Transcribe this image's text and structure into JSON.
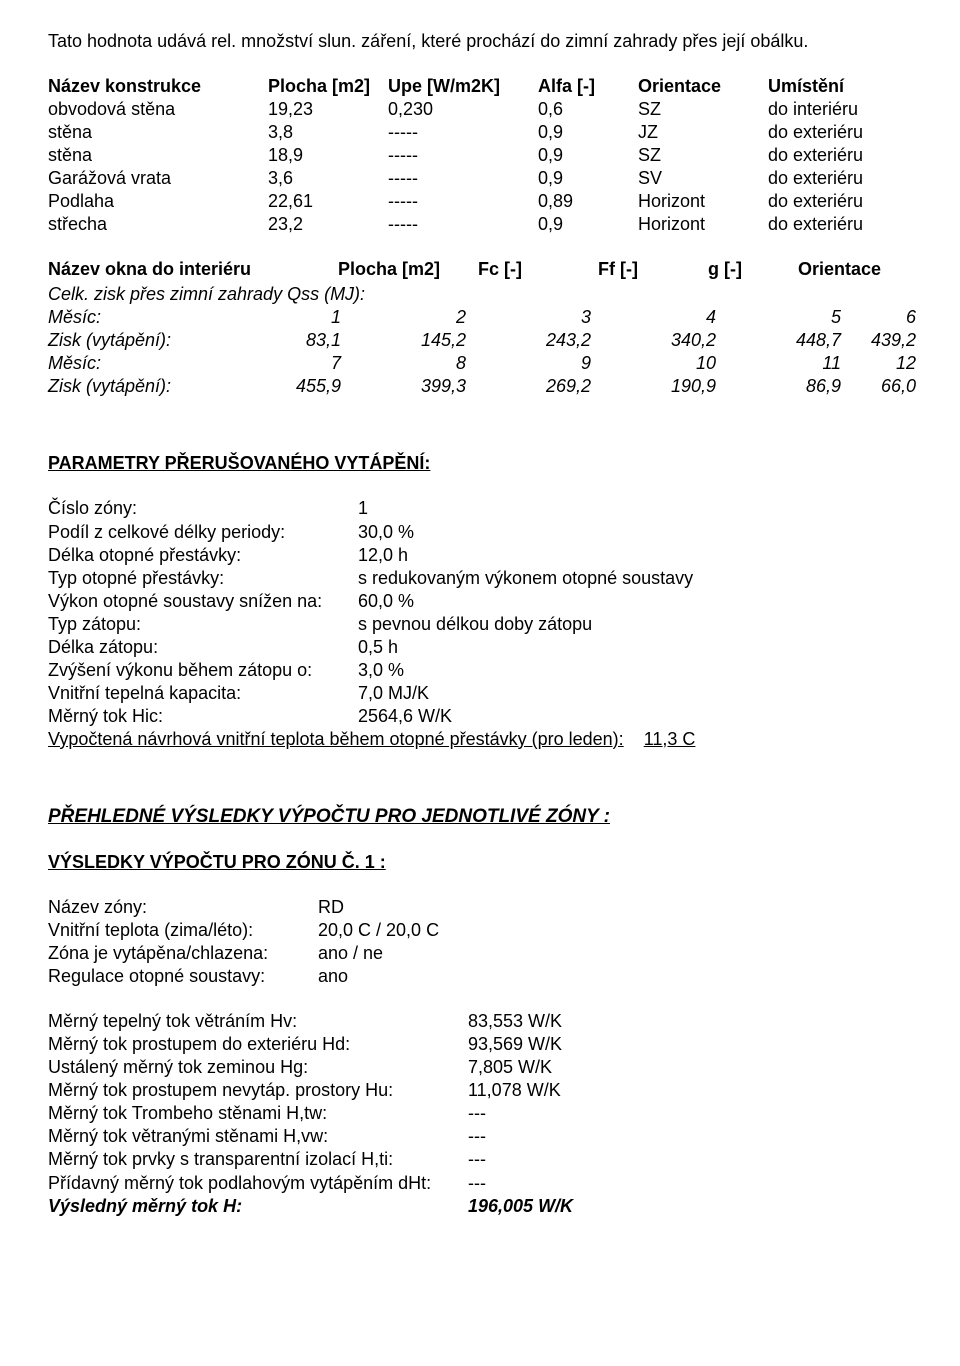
{
  "intro": "Tato hodnota udává rel. množství slun. záření, které prochází do zimní zahrady přes její obálku.",
  "cons": {
    "heads": [
      "Název konstrukce",
      "Plocha [m2]",
      "Upe [W/m2K]",
      "Alfa [-]",
      "Orientace",
      "Umístění"
    ],
    "rows": [
      [
        "obvodová stěna",
        "19,23",
        "0,230",
        "0,6",
        "SZ",
        "do interiéru"
      ],
      [
        "stěna",
        "3,8",
        "-----",
        "0,9",
        "JZ",
        "do exteriéru"
      ],
      [
        "stěna",
        "18,9",
        "-----",
        "0,9",
        "SZ",
        "do exteriéru"
      ],
      [
        "Garážová vrata",
        "3,6",
        "-----",
        "0,9",
        "SV",
        "do exteriéru"
      ],
      [
        "Podlaha",
        "22,61",
        "-----",
        "0,89",
        "Horizont",
        "do exteriéru"
      ],
      [
        "střecha",
        "23,2",
        "-----",
        "0,9",
        "Horizont",
        "do exteriéru"
      ]
    ]
  },
  "winheads": [
    "Název okna do interiéru",
    "Plocha [m2]",
    "Fc [-]",
    "Ff [-]",
    "g [-]",
    "Orientace"
  ],
  "celk_title": "Celk. zisk přes zimní zahrady Qss (MJ):",
  "zisk": {
    "m_label": "Měsíc:",
    "z_label": "Zisk (vytápění):",
    "r1_m": [
      "1",
      "2",
      "3",
      "4",
      "5",
      "6"
    ],
    "r1_v": [
      "83,1",
      "145,2",
      "243,2",
      "340,2",
      "448,7",
      "439,2"
    ],
    "r2_m": [
      "7",
      "8",
      "9",
      "10",
      "11",
      "12"
    ],
    "r2_v": [
      "455,9",
      "399,3",
      "269,2",
      "190,9",
      "86,9",
      "66,0"
    ]
  },
  "param_title": "PARAMETRY PŘERUŠOVANÉHO VYTÁPĚNÍ:",
  "params": [
    [
      "Číslo zóny:",
      "1"
    ],
    [
      "Podíl z celkové délky periody:",
      "30,0 %"
    ],
    [
      "Délka otopné přestávky:",
      "12,0 h"
    ],
    [
      "Typ otopné přestávky:",
      "s redukovaným výkonem otopné soustavy"
    ],
    [
      "Výkon otopné soustavy snížen na:",
      "60,0 %"
    ],
    [
      "Typ zátopu:",
      "s pevnou délkou doby zátopu"
    ],
    [
      "Délka zátopu:",
      "0,5 h"
    ],
    [
      "Zvýšení výkonu během zátopu o:",
      "3,0 %"
    ],
    [
      "Vnitřní tepelná kapacita:",
      "7,0 MJ/K"
    ],
    [
      "Měrný tok Hic:",
      "2564,6 W/K"
    ]
  ],
  "vypoctena": {
    "label": "Vypočtená návrhová vnitřní teplota během otopné přestávky (pro leden):",
    "value": "11,3 C"
  },
  "prehled_title": "PŘEHLEDNÉ VÝSLEDKY VÝPOČTU PRO JEDNOTLIVÉ ZÓNY :",
  "zone_title": "VÝSLEDKY VÝPOČTU PRO ZÓNU Č. 1 :",
  "zone_info": [
    [
      "Název zóny:",
      "RD"
    ],
    [
      "Vnitřní teplota (zima/léto):",
      "20,0 C / 20,0 C"
    ],
    [
      "Zóna je vytápěna/chlazena:",
      "ano / ne"
    ],
    [
      "Regulace otopné soustavy:",
      "ano"
    ]
  ],
  "flows": [
    [
      "Měrný tepelný tok větráním Hv:",
      "83,553 W/K"
    ],
    [
      "Měrný tok prostupem do exteriéru Hd:",
      "93,569 W/K"
    ],
    [
      "Ustálený měrný tok zeminou Hg:",
      "7,805 W/K"
    ],
    [
      "Měrný tok prostupem nevytáp. prostory Hu:",
      "11,078 W/K"
    ],
    [
      "Měrný tok Trombeho stěnami H,tw:",
      "---"
    ],
    [
      "Měrný tok větranými stěnami H,vw:",
      "---"
    ],
    [
      "Měrný tok prvky s transparentní izolací H,ti:",
      "---"
    ],
    [
      "Přídavný měrný tok podlahovým vytápěním dHt:",
      "---"
    ]
  ],
  "result": {
    "label": "Výsledný měrný tok H:",
    "value": "196,005 W/K"
  }
}
